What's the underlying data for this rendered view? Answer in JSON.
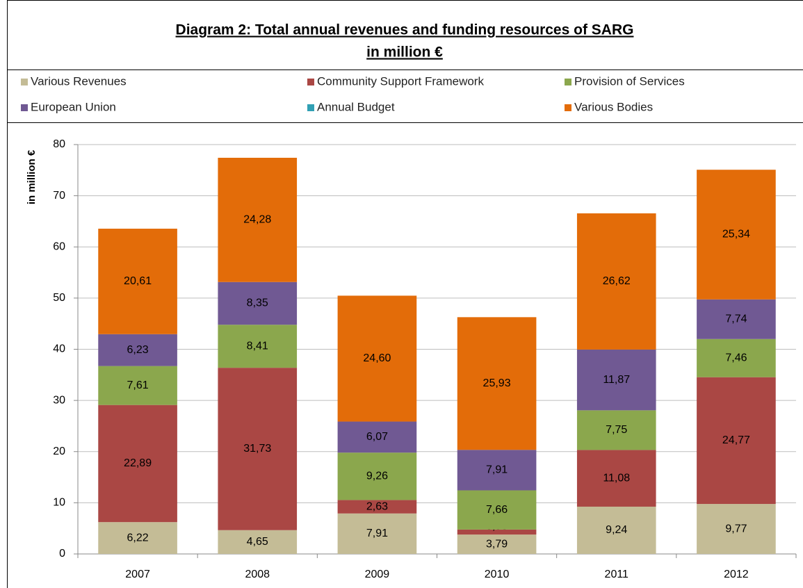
{
  "chart_data": {
    "type": "stacked_bar",
    "title": [
      "Diagram 2: Total annual revenues and funding resources of SARG",
      "in million €"
    ],
    "ylabel": "in million €",
    "categories": [
      "2007",
      "2008",
      "2009",
      "2010",
      "2011",
      "2012"
    ],
    "series": [
      {
        "name": "Various Revenues",
        "color": "#c4bc96",
        "values": [
          6.22,
          4.65,
          7.91,
          3.79,
          9.24,
          9.77
        ],
        "value_labels": [
          "6,22",
          "4,65",
          "7,91",
          "3,79",
          "9,24",
          "9,77"
        ]
      },
      {
        "name": "Community Support Framework",
        "color": "#aa4744",
        "values": [
          22.89,
          31.73,
          2.63,
          0.98,
          11.08,
          24.77
        ],
        "value_labels": [
          "22,89",
          "31,73",
          "2,63",
          "0,98",
          "11,08",
          "24,77"
        ]
      },
      {
        "name": "Provision of Services",
        "color": "#8ba74d",
        "values": [
          7.61,
          8.41,
          9.26,
          7.66,
          7.75,
          7.46
        ],
        "value_labels": [
          "7,61",
          "8,41",
          "9,26",
          "7,66",
          "7,75",
          "7,46"
        ]
      },
      {
        "name": "European Union",
        "color": "#705993",
        "values": [
          6.23,
          8.35,
          6.07,
          7.91,
          11.87,
          7.74
        ],
        "value_labels": [
          "6,23",
          "8,35",
          "6,07",
          "7,91",
          "11,87",
          "7,74"
        ]
      },
      {
        "name": "Annual Budget",
        "color": "#31a0b4",
        "values": [
          0,
          0,
          0,
          0,
          0,
          0
        ]
      },
      {
        "name": "Various Bodies",
        "color": "#e36c09",
        "values": [
          20.61,
          24.28,
          24.6,
          25.93,
          26.62,
          25.34
        ],
        "value_labels": [
          "20,61",
          "24,28",
          "24,60",
          "25,93",
          "26,62",
          "25,34"
        ]
      }
    ],
    "ylim": [
      0,
      80
    ],
    "yticks": [
      0,
      10,
      20,
      30,
      40,
      50,
      60,
      70,
      80
    ],
    "grid": true
  }
}
